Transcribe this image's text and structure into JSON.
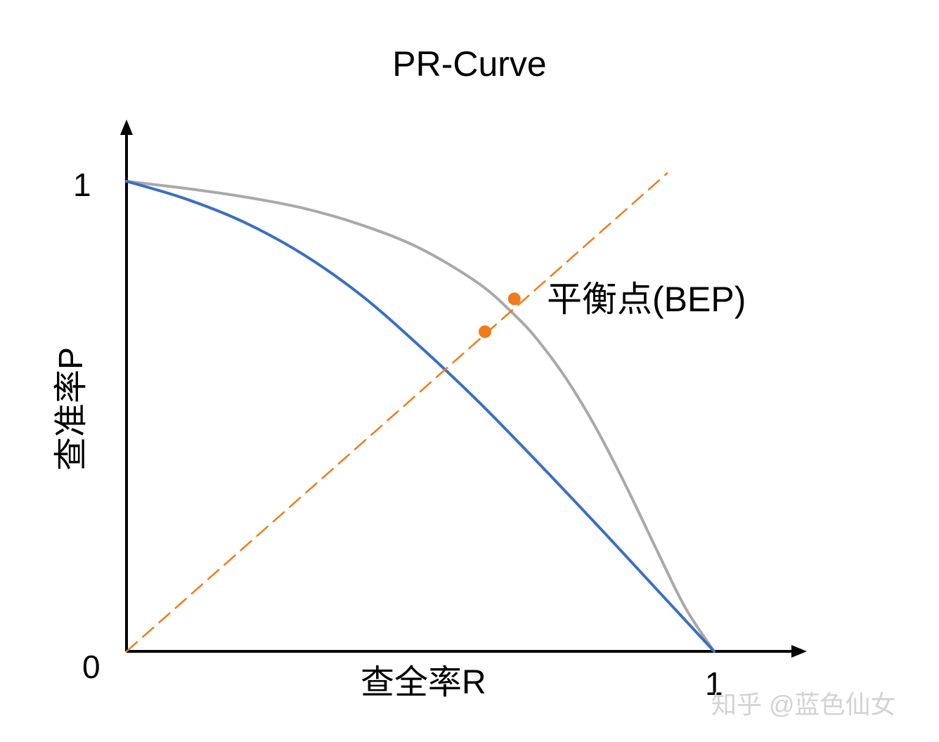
{
  "chart_data": {
    "type": "line",
    "title": "PR-Curve",
    "xlabel": "查全率R",
    "ylabel": "查准率P",
    "xlim": [
      0,
      1
    ],
    "ylim": [
      0,
      1
    ],
    "x_ticks": [
      "0",
      "1"
    ],
    "y_ticks": [
      "0",
      "1"
    ],
    "grid": false,
    "series": [
      {
        "color": "#a9a9a9",
        "x": [
          0,
          0.1,
          0.2,
          0.3,
          0.4,
          0.5,
          0.6,
          0.66,
          0.7,
          0.75,
          0.8,
          0.85,
          0.9,
          0.95,
          1.0
        ],
        "y": [
          1.0,
          0.985,
          0.967,
          0.943,
          0.907,
          0.857,
          0.782,
          0.716,
          0.662,
          0.577,
          0.473,
          0.352,
          0.222,
          0.095,
          0.0
        ]
      },
      {
        "color": "#3a6fc4",
        "x": [
          0,
          0.1,
          0.2,
          0.3,
          0.4,
          0.5,
          0.6,
          0.7,
          0.8,
          0.9,
          1.0
        ],
        "y": [
          1.0,
          0.963,
          0.913,
          0.845,
          0.757,
          0.648,
          0.53,
          0.402,
          0.27,
          0.135,
          0.0
        ]
      },
      {
        "color": "#f07b1a",
        "style": "dashed",
        "x": [
          0,
          0.92
        ],
        "y": [
          0,
          1.017
        ]
      }
    ],
    "points": [
      {
        "x": 0.66,
        "y": 0.75,
        "color": "#f07b1a"
      },
      {
        "x": 0.61,
        "y": 0.68,
        "color": "#f07b1a"
      }
    ],
    "annotations": [
      {
        "text": "平衡点(BEP)",
        "x": 0.66,
        "y": 0.75
      }
    ]
  },
  "watermark": "知乎 @蓝色仙女"
}
